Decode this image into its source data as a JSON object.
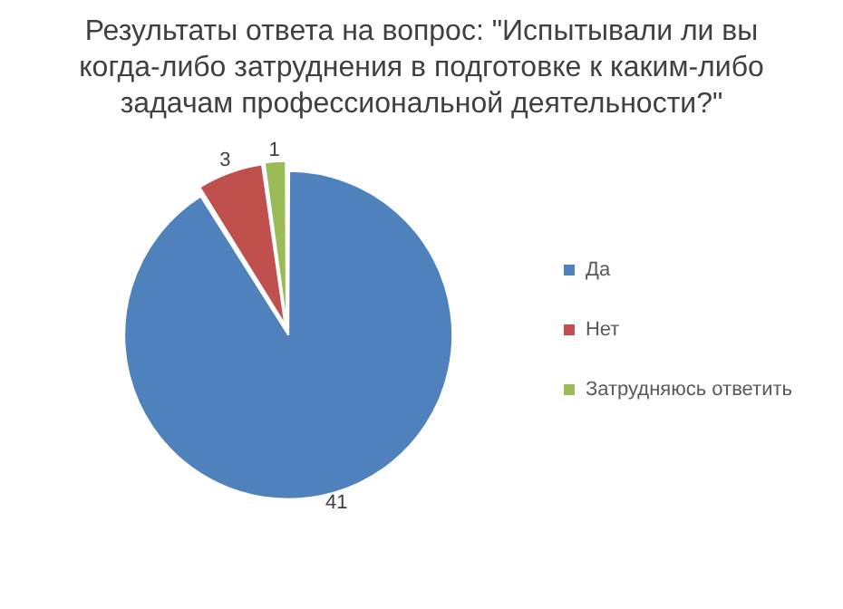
{
  "chart_data": {
    "type": "pie",
    "title": "Результаты ответа на вопрос: \"Испытывали ли вы когда-либо затруднения в подготовке к каким-либо задачам профессиональной деятельности?\"",
    "categories": [
      "Да",
      "Нет",
      "Затрудняюсь ответить"
    ],
    "values": [
      41,
      3,
      1
    ],
    "colors": [
      "#4f81bd",
      "#c0504d",
      "#9bbb59"
    ],
    "data_labels": true,
    "legend": "right"
  }
}
